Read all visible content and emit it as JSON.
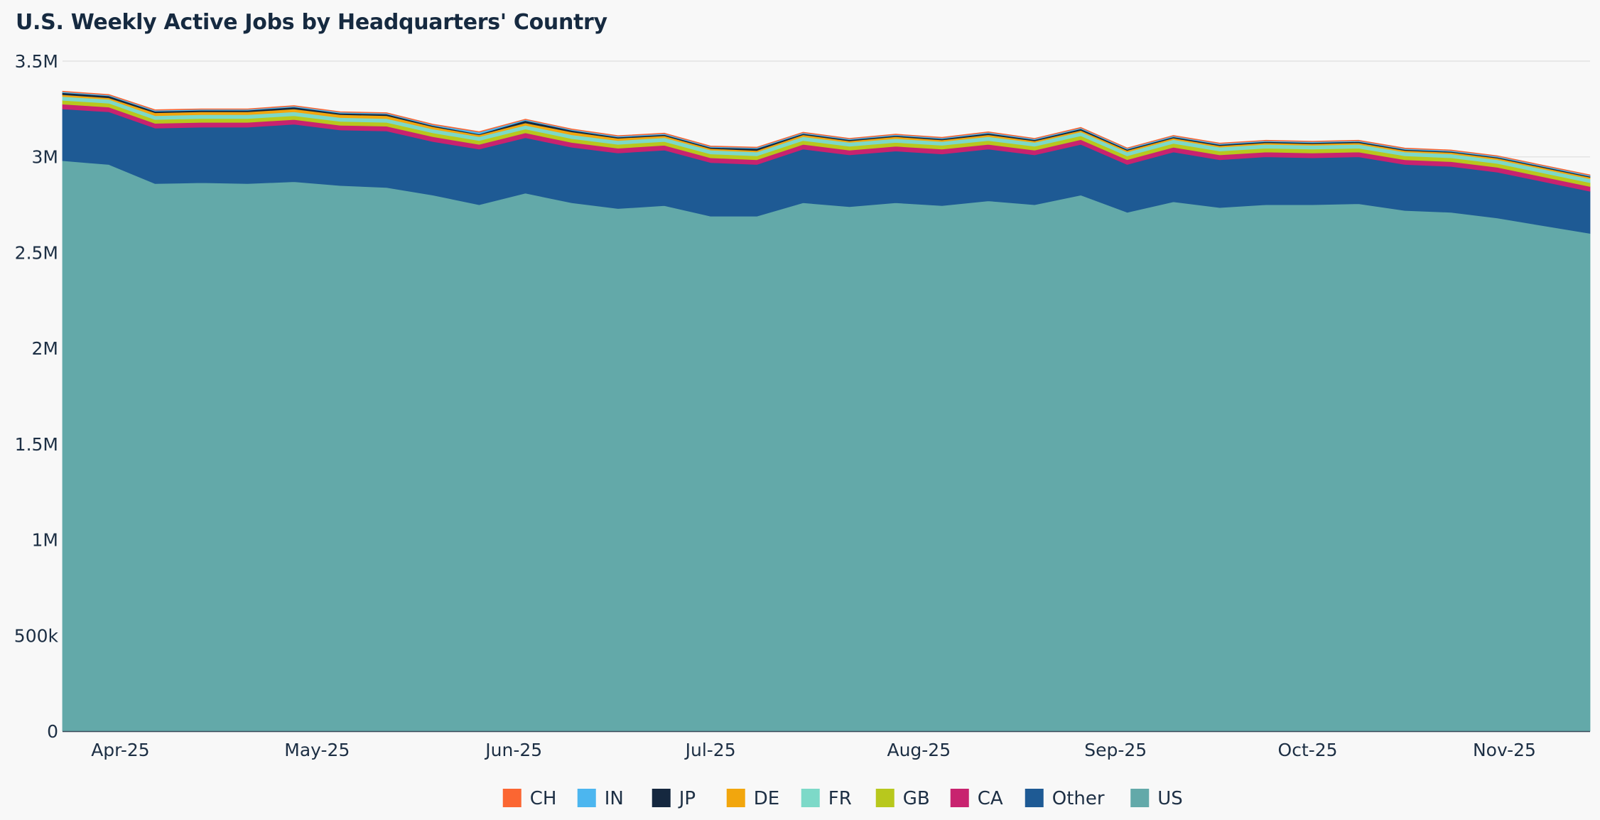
{
  "chart_data": {
    "type": "area",
    "stacked": true,
    "title": "U.S. Weekly Active Jobs by Headquarters' Country",
    "xlabel": "",
    "ylabel": "",
    "ylim": [
      0,
      3500000
    ],
    "yticks": [
      {
        "value": 0,
        "label": "0"
      },
      {
        "value": 500000,
        "label": "500k"
      },
      {
        "value": 1000000,
        "label": "1M"
      },
      {
        "value": 1500000,
        "label": "1.5M"
      },
      {
        "value": 2000000,
        "label": "2M"
      },
      {
        "value": 2500000,
        "label": "2.5M"
      },
      {
        "value": 3000000,
        "label": "3M"
      },
      {
        "value": 3500000,
        "label": "3.5M"
      }
    ],
    "x_start_week": 0,
    "x_end_week": 33,
    "xticks": [
      {
        "week": 1.25,
        "label": "Apr-25"
      },
      {
        "week": 5.5,
        "label": "May-25"
      },
      {
        "week": 9.75,
        "label": "Jun-25"
      },
      {
        "week": 14,
        "label": "Jul-25"
      },
      {
        "week": 18.5,
        "label": "Aug-25"
      },
      {
        "week": 22.75,
        "label": "Sep-25"
      },
      {
        "week": 26.9,
        "label": "Oct-25"
      },
      {
        "week": 31.15,
        "label": "Nov-25"
      }
    ],
    "grid": true,
    "legend_position": "bottom",
    "series": [
      {
        "name": "US",
        "color": "#63a9a9",
        "values": [
          2980000,
          2960000,
          2860000,
          2865000,
          2860000,
          2870000,
          2850000,
          2840000,
          2800000,
          2750000,
          2810000,
          2760000,
          2730000,
          2745000,
          2690000,
          2690000,
          2760000,
          2740000,
          2760000,
          2745000,
          2770000,
          2750000,
          2800000,
          2710000,
          2765000,
          2735000,
          2750000,
          2750000,
          2755000,
          2720000,
          2710000,
          2680000,
          2640000,
          2600000
        ]
      },
      {
        "name": "Other",
        "color": "#1e5a94",
        "values": [
          270000,
          275000,
          290000,
          290000,
          295000,
          300000,
          290000,
          295000,
          280000,
          290000,
          290000,
          290000,
          290000,
          290000,
          280000,
          270000,
          280000,
          270000,
          270000,
          270000,
          270000,
          260000,
          265000,
          250000,
          260000,
          250000,
          250000,
          245000,
          245000,
          240000,
          240000,
          240000,
          230000,
          220000
        ]
      },
      {
        "name": "CA",
        "color": "#c8236f",
        "values": [
          25000,
          25000,
          25000,
          25000,
          25000,
          25000,
          25000,
          25000,
          25000,
          25000,
          25000,
          25000,
          25000,
          25000,
          25000,
          25000,
          25000,
          25000,
          25000,
          25000,
          25000,
          25000,
          25000,
          25000,
          25000,
          25000,
          25000,
          25000,
          25000,
          25000,
          25000,
          25000,
          25000,
          25000
        ]
      },
      {
        "name": "GB",
        "color": "#b8c81d",
        "values": [
          20000,
          20000,
          20000,
          20000,
          20000,
          20000,
          20000,
          20000,
          20000,
          20000,
          20000,
          20000,
          20000,
          20000,
          20000,
          20000,
          20000,
          20000,
          20000,
          20000,
          20000,
          20000,
          20000,
          20000,
          20000,
          20000,
          20000,
          20000,
          20000,
          20000,
          20000,
          20000,
          20000,
          20000
        ]
      },
      {
        "name": "FR",
        "color": "#7dd9c8",
        "values": [
          20000,
          20000,
          20000,
          20000,
          20000,
          20000,
          20000,
          20000,
          20000,
          20000,
          20000,
          20000,
          20000,
          20000,
          20000,
          20000,
          20000,
          20000,
          20000,
          20000,
          20000,
          20000,
          20000,
          20000,
          20000,
          20000,
          20000,
          20000,
          20000,
          20000,
          20000,
          20000,
          20000,
          20000
        ]
      },
      {
        "name": "DE",
        "color": "#f2a60d",
        "values": [
          10000,
          8000,
          15000,
          15000,
          15000,
          15000,
          15000,
          15000,
          12000,
          10000,
          12000,
          15000,
          12000,
          10000,
          8000,
          8000,
          10000,
          8000,
          10000,
          8000,
          10000,
          8000,
          8000,
          8000,
          8000,
          8000,
          8000,
          8000,
          8000,
          8000,
          8000,
          8000,
          8000,
          8000
        ]
      },
      {
        "name": "JP",
        "color": "#15283f",
        "values": [
          10000,
          10000,
          8000,
          8000,
          8000,
          10000,
          8000,
          8000,
          6000,
          4000,
          12000,
          8000,
          6000,
          6000,
          6000,
          10000,
          6000,
          6000,
          6000,
          6000,
          8000,
          6000,
          8000,
          6000,
          6000,
          6000,
          6000,
          6000,
          6000,
          5000,
          5000,
          5000,
          5000,
          5000
        ]
      },
      {
        "name": "IN",
        "color": "#4cb6ef",
        "values": [
          5000,
          5000,
          5000,
          5000,
          5000,
          5000,
          5000,
          5000,
          5000,
          10000,
          5000,
          5000,
          5000,
          5000,
          5000,
          5000,
          5000,
          5000,
          5000,
          5000,
          5000,
          5000,
          5000,
          5000,
          5000,
          5000,
          5000,
          5000,
          5000,
          5000,
          5000,
          5000,
          5000,
          5000
        ]
      },
      {
        "name": "CH",
        "color": "#fb6632",
        "values": [
          3000,
          3000,
          3000,
          3000,
          3000,
          3000,
          3000,
          3000,
          3000,
          3000,
          3000,
          3000,
          3000,
          3000,
          3000,
          3000,
          3000,
          3000,
          3000,
          3000,
          3000,
          3000,
          3000,
          3000,
          3000,
          3000,
          3000,
          3000,
          3000,
          3000,
          3000,
          3000,
          3000,
          3000
        ]
      }
    ],
    "legend_order": [
      "CH",
      "IN",
      "JP",
      "DE",
      "FR",
      "GB",
      "CA",
      "Other",
      "US"
    ]
  }
}
